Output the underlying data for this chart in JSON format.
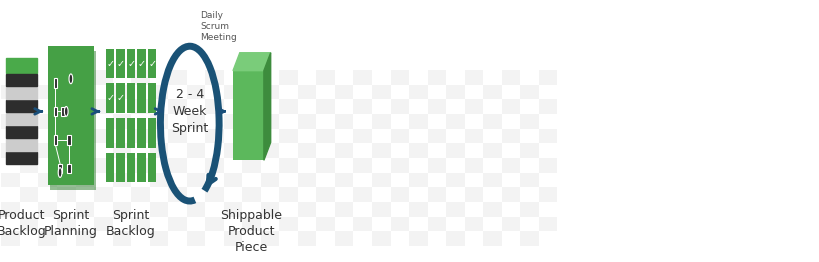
{
  "bg_color": "#ffffff",
  "checkerboard_color": "#e8e8e8",
  "green_dark": "#3a7d3a",
  "green_mid": "#4a9a4a",
  "green_light": "#5cb85c",
  "green_box": "#4c9e4c",
  "dark_gray": "#333333",
  "blue_arrow": "#1a4f7a",
  "blue_circle": "#1a5276",
  "labels": [
    "Product\nBacklog",
    "Sprint\nPlanning",
    "Sprint\nBacklog",
    "2 - 4\nWeek\nSprint",
    "Shippable\nProduct\nPiece"
  ],
  "daily_scrum": "Daily\nScrum\nMeeting",
  "label_fontsize": 9,
  "title_fontsize": 10
}
